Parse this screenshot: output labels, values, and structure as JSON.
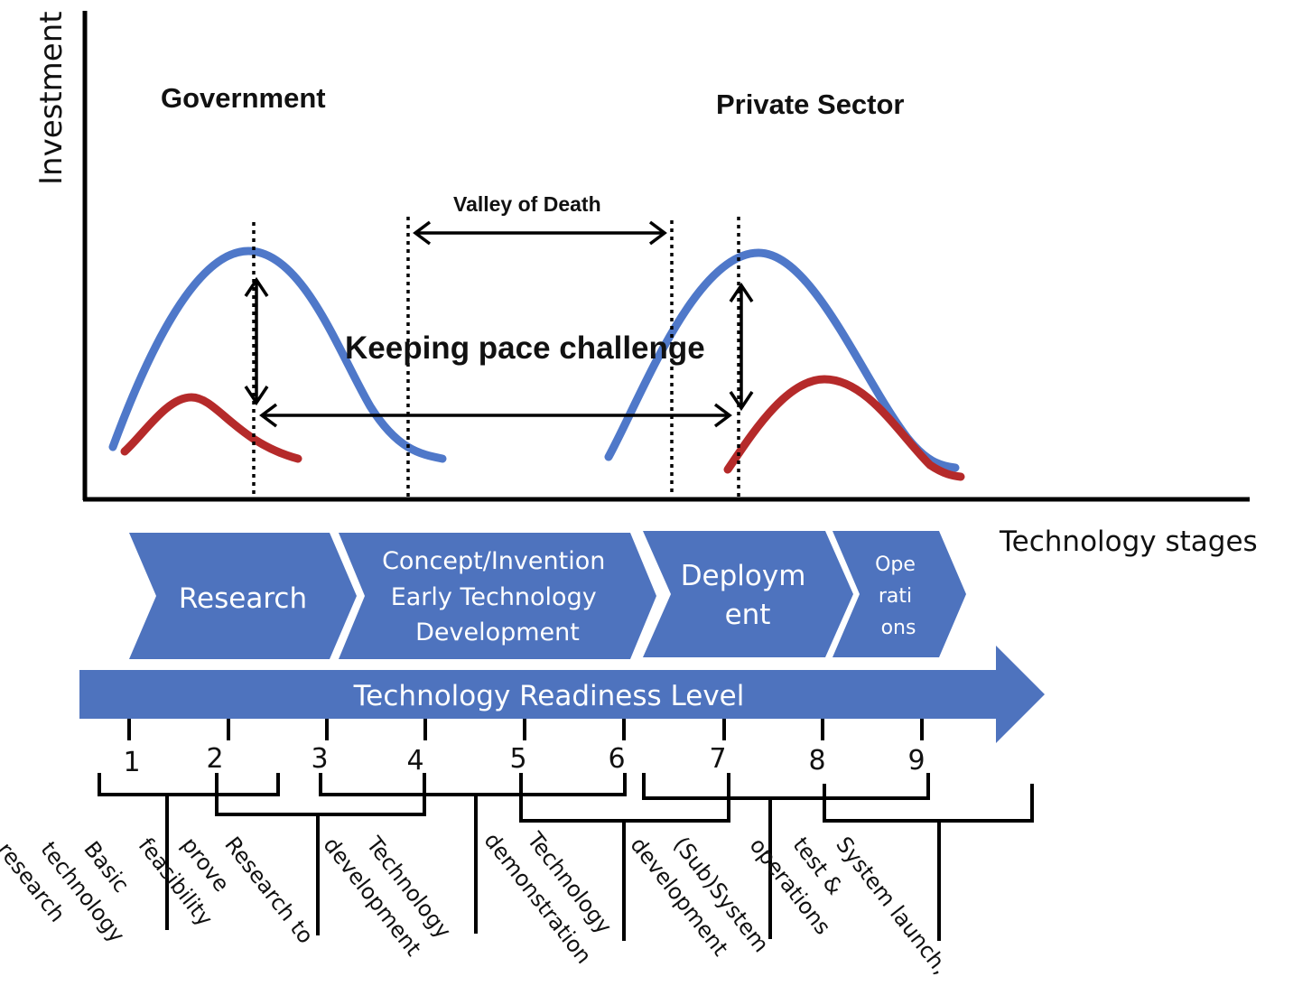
{
  "axes": {
    "y_label": "Investment",
    "x_label": "Technology stages"
  },
  "sectors": {
    "government": "Government",
    "private": "Private Sector"
  },
  "annotations": {
    "valley": "Valley of Death",
    "keeping_pace": "Keeping pace challenge"
  },
  "colors": {
    "investment_curve": "#4f78c9",
    "secondary_curve": "#b52a2a",
    "chevron_fill": "#4e73be"
  },
  "stages": [
    {
      "lines": [
        "Research"
      ]
    },
    {
      "lines": [
        "Concept/Invention",
        "Early Technology",
        "Development"
      ]
    },
    {
      "lines": [
        "Deploym",
        "ent"
      ]
    },
    {
      "lines": [
        "Ope",
        "rati",
        "ons"
      ]
    }
  ],
  "trl": {
    "label": "Technology Readiness Level",
    "levels": [
      "1",
      "2",
      "3",
      "4",
      "5",
      "6",
      "7",
      "8",
      "9"
    ]
  },
  "phases": [
    {
      "lines": [
        "Basic",
        "technology",
        "research"
      ]
    },
    {
      "lines": [
        "Research to",
        "prove",
        "feasibility"
      ]
    },
    {
      "lines": [
        "Technology",
        "development"
      ]
    },
    {
      "lines": [
        "Technology",
        "demonstration"
      ]
    },
    {
      "lines": [
        "(Sub)System",
        "development"
      ]
    },
    {
      "lines": [
        "System launch,",
        "test &",
        "operations"
      ]
    }
  ]
}
